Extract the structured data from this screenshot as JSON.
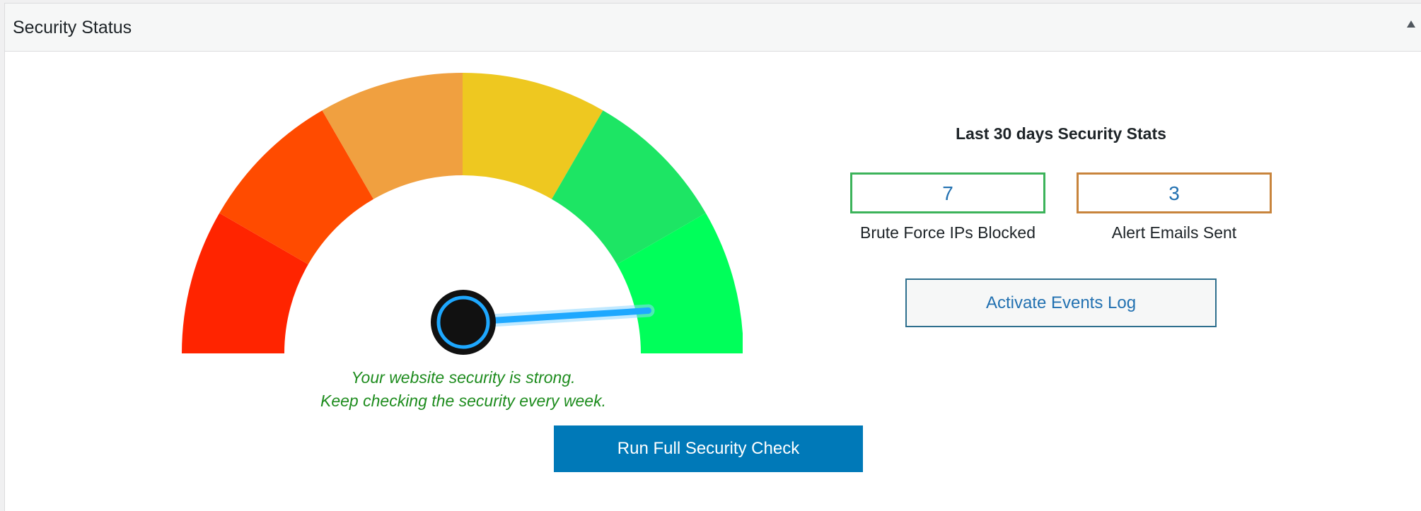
{
  "panel": {
    "title": "Security Status",
    "toggle_icon": "triangle-up-icon"
  },
  "gauge": {
    "segment_colors": [
      "#ff2400",
      "#ff4b00",
      "#f0a040",
      "#eec820",
      "#1de564",
      "#00ff5a"
    ],
    "needle_color": "#1ea8ff",
    "hub_color": "#111111",
    "level_fraction": 0.98
  },
  "message": {
    "line1": "Your website security is strong.",
    "line2": "Keep checking the security every week.",
    "color": "#1e8c1e"
  },
  "actions": {
    "run_check_label": "Run Full Security Check",
    "run_check_color": "#0079b8"
  },
  "stats": {
    "title": "Last 30 days Security Stats",
    "items": [
      {
        "value": "7",
        "label": "Brute Force IPs Blocked",
        "border_color": "#3cb35a"
      },
      {
        "value": "3",
        "label": "Alert Emails Sent",
        "border_color": "#c8843c"
      }
    ],
    "events_button_label": "Activate Events Log"
  }
}
